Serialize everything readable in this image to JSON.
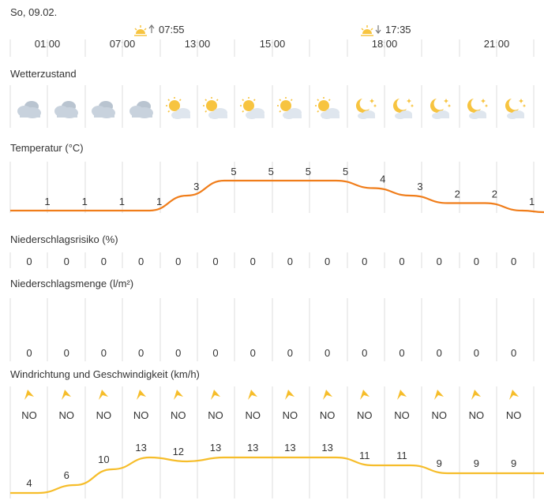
{
  "date": "So, 09.02.",
  "sunrise": {
    "icon": "sunrise-icon",
    "time": "07:55"
  },
  "sunset": {
    "icon": "sunset-icon",
    "time": "17:35"
  },
  "time_labels": [
    "01:00",
    "07:00",
    "13:00",
    "15:00",
    "18:00",
    "21:00"
  ],
  "sections": {
    "condition": "Wetterzustand",
    "temperature": "Temperatur (°C)",
    "precip_risk": "Niederschlagsrisiko (%)",
    "precip_amount": "Niederschlagsmenge (l/m²)",
    "wind": "Windrichtung und Geschwindigkeit (km/h)"
  },
  "condition_icons": [
    "cloudy-icon",
    "cloudy-icon",
    "cloudy-icon",
    "cloudy-icon",
    "partly-sunny-icon",
    "partly-sunny-icon",
    "partly-sunny-icon",
    "partly-sunny-icon",
    "partly-sunny-icon",
    "moon-cloud-icon",
    "moon-cloud-icon",
    "moon-cloud-icon",
    "moon-cloud-icon",
    "moon-cloud-icon"
  ],
  "temperature": [
    1,
    1,
    1,
    1,
    3,
    5,
    5,
    5,
    5,
    4,
    3,
    2,
    2,
    1
  ],
  "precip_risk": [
    0,
    0,
    0,
    0,
    0,
    0,
    0,
    0,
    0,
    0,
    0,
    0,
    0,
    0
  ],
  "precip_amount": [
    0,
    0,
    0,
    0,
    0,
    0,
    0,
    0,
    0,
    0,
    0,
    0,
    0,
    0
  ],
  "wind_direction": [
    "NO",
    "NO",
    "NO",
    "NO",
    "NO",
    "NO",
    "NO",
    "NO",
    "NO",
    "NO",
    "NO",
    "NO",
    "NO",
    "NO"
  ],
  "wind_speed": [
    4,
    6,
    10,
    13,
    12,
    13,
    13,
    13,
    13,
    11,
    11,
    9,
    9,
    9
  ],
  "colors": {
    "temperature_line": "#f07d1a",
    "wind_line": "#f6bd2a",
    "sun": "#f7c440",
    "cloud": "#c8d2dd",
    "grid": "#dddddd"
  }
}
